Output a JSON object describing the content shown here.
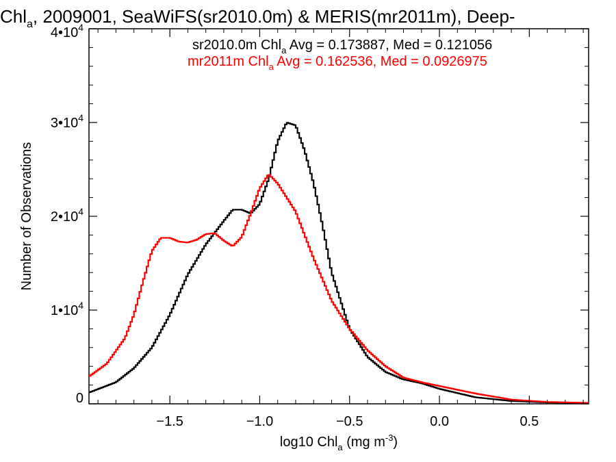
{
  "chart_data": {
    "type": "line",
    "title": {
      "prefix": "Chl",
      "sub": "a",
      "rest": ", 2009001, SeaWiFS(sr2010.0m) & MERIS(mr2011m), Deep-"
    },
    "xlabel": {
      "prefix": "log10 Chl",
      "sub": "a",
      "units": " (mg m",
      "sup": "-3",
      "close": ")"
    },
    "ylabel": "Number of Observations",
    "xlim": [
      -1.95,
      0.83
    ],
    "ylim": [
      0,
      40000
    ],
    "x_ticks": [
      {
        "value": -1.5,
        "label": "−1.5"
      },
      {
        "value": -1.0,
        "label": "−1.0"
      },
      {
        "value": -0.5,
        "label": "−0.5"
      },
      {
        "value": 0.0,
        "label": "0.0"
      },
      {
        "value": 0.5,
        "label": "0.5"
      }
    ],
    "y_ticks": [
      {
        "value": 0,
        "base": "0",
        "exp": ""
      },
      {
        "value": 10000,
        "base": "1•10",
        "exp": "4"
      },
      {
        "value": 20000,
        "base": "2•10",
        "exp": "4"
      },
      {
        "value": 30000,
        "base": "3•10",
        "exp": "4"
      },
      {
        "value": 40000,
        "base": "4•10",
        "exp": "4"
      }
    ],
    "grid": false,
    "legend_placement": "top-right",
    "series": [
      {
        "name": "sr2010.0m",
        "color": "#000000",
        "legend": {
          "prefix": "sr2010.0m Chl",
          "sub": "a",
          "rest": " Avg = 0.173887, Med = 0.121056"
        },
        "x": [
          -1.95,
          -1.8,
          -1.7,
          -1.6,
          -1.5,
          -1.4,
          -1.3,
          -1.2,
          -1.15,
          -1.1,
          -1.05,
          -1.0,
          -0.95,
          -0.9,
          -0.85,
          -0.8,
          -0.75,
          -0.7,
          -0.65,
          -0.6,
          -0.5,
          -0.4,
          -0.3,
          -0.2,
          -0.1,
          0.0,
          0.2,
          0.4,
          0.6,
          0.83
        ],
        "values": [
          1200,
          2300,
          3800,
          6000,
          9500,
          13800,
          17000,
          19500,
          20700,
          20700,
          20300,
          21300,
          24000,
          28000,
          30000,
          29700,
          27000,
          23500,
          19000,
          14000,
          8000,
          5000,
          3400,
          2600,
          2200,
          1600,
          700,
          300,
          150,
          80
        ]
      },
      {
        "name": "mr2011m",
        "color": "#ff0000",
        "legend": {
          "prefix": "mr2011m Chl",
          "sub": "a",
          "rest": " Avg = 0.162536, Med = 0.0926975"
        },
        "x": [
          -1.95,
          -1.85,
          -1.75,
          -1.7,
          -1.65,
          -1.6,
          -1.55,
          -1.5,
          -1.45,
          -1.4,
          -1.35,
          -1.3,
          -1.25,
          -1.2,
          -1.15,
          -1.1,
          -1.05,
          -1.0,
          -0.95,
          -0.9,
          -0.85,
          -0.8,
          -0.75,
          -0.7,
          -0.6,
          -0.5,
          -0.4,
          -0.3,
          -0.2,
          -0.1,
          0.0,
          0.2,
          0.4,
          0.6,
          0.83
        ],
        "values": [
          2900,
          4300,
          7000,
          9500,
          13000,
          16300,
          17700,
          17700,
          17300,
          17200,
          17500,
          18100,
          18200,
          17400,
          16800,
          17800,
          20300,
          23000,
          24500,
          23500,
          22000,
          20500,
          18000,
          15500,
          11000,
          8000,
          5700,
          4000,
          2800,
          2300,
          1900,
          1100,
          450,
          200,
          100
        ]
      }
    ]
  }
}
